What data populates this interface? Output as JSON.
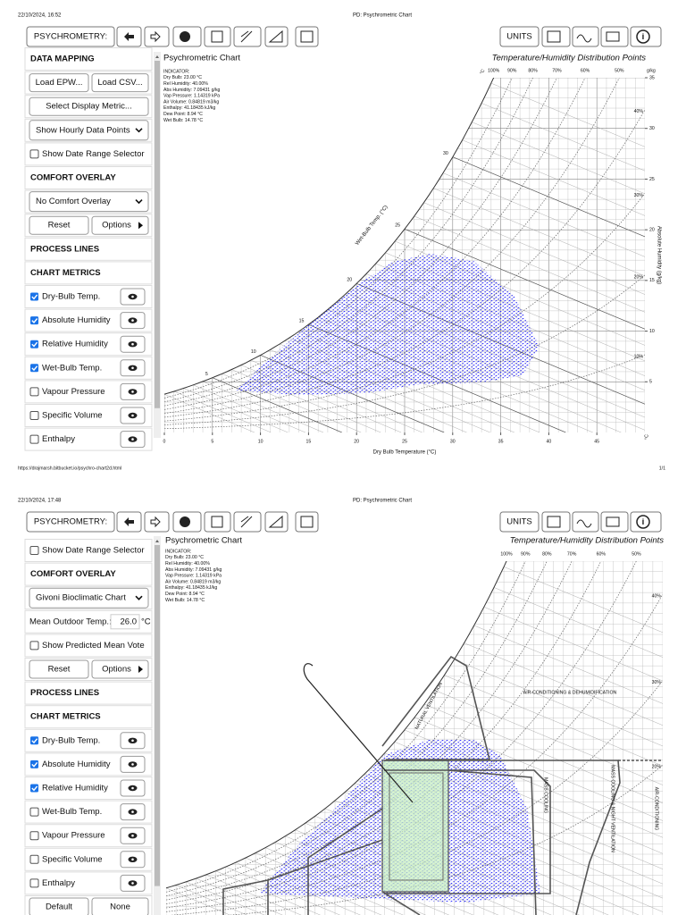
{
  "pages": [
    {
      "header": {
        "timestamp": "22/10/2024, 16:52",
        "title": "PD: Psychrometric Chart"
      },
      "toolbar": {
        "app_button": "PSYCHROMETRY:",
        "units_button": "UNITS"
      },
      "sidebar": [
        {
          "kind": "section",
          "label": "DATA MAPPING"
        },
        {
          "kind": "buttons",
          "labels": [
            "Load EPW...",
            "Load CSV..."
          ]
        },
        {
          "kind": "button",
          "label": "Select Display Metric..."
        },
        {
          "kind": "select",
          "label": "Show Hourly Data Points"
        },
        {
          "kind": "checkbox",
          "label": "Show Date Range Selector",
          "checked": false
        },
        {
          "kind": "section",
          "label": "COMFORT OVERLAY"
        },
        {
          "kind": "select",
          "label": "No Comfort Overlay"
        },
        {
          "kind": "buttons",
          "labels": [
            "Reset",
            "Options"
          ],
          "submenu": true
        },
        {
          "kind": "section",
          "label": "PROCESS LINES"
        },
        {
          "kind": "section",
          "label": "CHART METRICS"
        },
        {
          "kind": "metric",
          "label": "Dry-Bulb Temp.",
          "checked": true
        },
        {
          "kind": "metric",
          "label": "Absolute Humidity",
          "checked": true
        },
        {
          "kind": "metric",
          "label": "Relative Humidity",
          "checked": true
        },
        {
          "kind": "metric",
          "label": "Wet-Bulb Temp.",
          "checked": true
        },
        {
          "kind": "metric",
          "label": "Vapour Pressure",
          "checked": false
        },
        {
          "kind": "metric",
          "label": "Specific Volume",
          "checked": false
        },
        {
          "kind": "metric",
          "label": "Enthalpy",
          "checked": false
        }
      ],
      "chart": {
        "title": "Psychrometric Chart",
        "indicator": [
          "INDICATOR:",
          "Dry Bulb: 23.00 °C",
          "Rel Humidity: 40.00%",
          "Abs Humidity: 7.09431 g/kg",
          "Vap Pressure: 1.14319 kPa",
          "Air Volume: 0.84819 m3/kg",
          "Enthalpy: 41.18435 kJ/kg",
          "Dew Point: 8.94 °C",
          "Wet Bulb: 14.78 °C"
        ],
        "legend_title": "Temperature/Humidity Distribution Points",
        "x_label": "Dry Bulb Temperature (°C)",
        "y_label": "Absolute Humidity (g/kg)",
        "y_unit": "g/kg",
        "t_unit": "°C",
        "wet_bulb_label": "Wet-Bulb Temp. (°C)",
        "xlim": [
          0,
          50
        ],
        "ylim": [
          0,
          35
        ],
        "xticks": [
          0,
          5,
          10,
          15,
          20,
          25,
          30,
          35,
          40,
          45
        ],
        "yticks": [
          5,
          10,
          15,
          20,
          25,
          30,
          35
        ],
        "wet_bulb_ticks": [
          5,
          10,
          15,
          20,
          25,
          30
        ],
        "rh_lines": [
          {
            "value": 100,
            "label": "100%"
          },
          {
            "value": 90,
            "label": "90%"
          },
          {
            "value": 80,
            "label": "80%"
          },
          {
            "value": 70,
            "label": "70%"
          },
          {
            "value": 60,
            "label": "60%"
          },
          {
            "value": 50,
            "label": "50%"
          },
          {
            "value": 40,
            "label": "40%"
          },
          {
            "value": 30,
            "label": "30%"
          },
          {
            "value": 20,
            "label": "20%"
          },
          {
            "value": 10,
            "label": "10%"
          }
        ]
      },
      "footer": {
        "url": "https://drajmarsh.bitbucket.io/psychro-chart2d.html",
        "page_number": "1/1"
      }
    },
    {
      "header": {
        "timestamp": "22/10/2024, 17:48",
        "title": "PD: Psychrometric Chart"
      },
      "toolbar": {
        "app_button": "PSYCHROMETRY:",
        "units_button": "UNITS"
      },
      "sidebar": [
        {
          "kind": "checkbox",
          "label": "Show Date Range Selector",
          "checked": false
        },
        {
          "kind": "section",
          "label": "COMFORT OVERLAY"
        },
        {
          "kind": "select",
          "label": "Givoni Bioclimatic Chart"
        },
        {
          "kind": "field",
          "label": "Mean Outdoor Temp.:",
          "value": "26.0",
          "unit": "°C"
        },
        {
          "kind": "checkbox",
          "label": "Show Predicted Mean Vote",
          "checked": false
        },
        {
          "kind": "buttons",
          "labels": [
            "Reset",
            "Options"
          ],
          "submenu": true
        },
        {
          "kind": "section",
          "label": "PROCESS LINES"
        },
        {
          "kind": "section",
          "label": "CHART METRICS"
        },
        {
          "kind": "metric",
          "label": "Dry-Bulb Temp.",
          "checked": true
        },
        {
          "kind": "metric",
          "label": "Absolute Humidity",
          "checked": true
        },
        {
          "kind": "metric",
          "label": "Relative Humidity",
          "checked": true
        },
        {
          "kind": "metric",
          "label": "Wet-Bulb Temp.",
          "checked": false
        },
        {
          "kind": "metric",
          "label": "Vapour Pressure",
          "checked": false
        },
        {
          "kind": "metric",
          "label": "Specific Volume",
          "checked": false
        },
        {
          "kind": "metric",
          "label": "Enthalpy",
          "checked": false
        },
        {
          "kind": "buttons",
          "labels": [
            "Default",
            "None"
          ]
        }
      ],
      "chart": {
        "title": "Psychrometric Chart",
        "indicator": [
          "INDICATOR:",
          "Dry Bulb: 23.00 °C",
          "Rel Humidity: 40.00%",
          "Abs Humidity: 7.09431 g/kg",
          "Vap Pressure: 1.14319 kPa",
          "Air Volume: 0.84819 m3/kg",
          "Enthalpy: 41.18435 kJ/kg",
          "Dew Point: 8.94 °C",
          "Wet Bulb: 14.78 °C"
        ],
        "legend_title": "Temperature/Humidity Distribution Points",
        "xlim": [
          0,
          50
        ],
        "ylim": [
          0,
          35
        ],
        "rh_lines": [
          {
            "value": 100,
            "label": "100%"
          },
          {
            "value": 90,
            "label": "90%"
          },
          {
            "value": 80,
            "label": "80%"
          },
          {
            "value": 70,
            "label": "70%"
          },
          {
            "value": 60,
            "label": "60%"
          },
          {
            "value": 50,
            "label": "50%"
          },
          {
            "value": 40,
            "label": "40%"
          },
          {
            "value": 30,
            "label": "30%"
          },
          {
            "value": 20,
            "label": "20%"
          }
        ],
        "zones": [
          "NATURAL VENTILATION",
          "AIR-CONDITIONING & DEHUMIDIFICATION",
          "MASS COOLING",
          "MASS COOLING & NIGHT VENTILATION",
          "AIR-CONDITIONING"
        ]
      }
    }
  ]
}
